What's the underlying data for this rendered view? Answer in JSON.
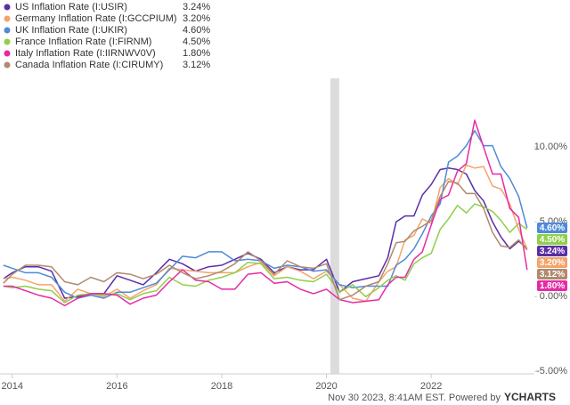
{
  "chart_data": {
    "type": "line",
    "x": [
      2013.83,
      2014.0,
      2014.25,
      2014.5,
      2014.75,
      2015.0,
      2015.25,
      2015.5,
      2015.75,
      2016.0,
      2016.25,
      2016.5,
      2016.75,
      2017.0,
      2017.25,
      2017.5,
      2017.75,
      2018.0,
      2018.25,
      2018.5,
      2018.75,
      2019.0,
      2019.25,
      2019.5,
      2019.75,
      2020.0,
      2020.25,
      2020.5,
      2020.75,
      2021.0,
      2021.17,
      2021.33,
      2021.5,
      2021.67,
      2021.83,
      2022.0,
      2022.17,
      2022.33,
      2022.5,
      2022.67,
      2022.83,
      2023.0,
      2023.17,
      2023.33,
      2023.5,
      2023.67,
      2023.83
    ],
    "series": [
      {
        "name": "US Inflation Rate (I:USIR)",
        "color": "#5b2ea6",
        "last_label": "3.24%",
        "values": [
          1.2,
          1.6,
          2.0,
          2.0,
          1.7,
          -0.1,
          0.0,
          0.2,
          0.2,
          1.4,
          1.1,
          0.8,
          1.6,
          2.5,
          2.2,
          1.7,
          2.0,
          2.1,
          2.5,
          2.9,
          2.5,
          1.6,
          2.0,
          1.8,
          1.8,
          2.5,
          0.3,
          1.0,
          1.2,
          1.4,
          2.6,
          5.0,
          5.4,
          5.4,
          6.8,
          7.5,
          8.5,
          8.6,
          8.5,
          8.2,
          7.1,
          6.4,
          5.0,
          4.0,
          3.2,
          3.7,
          3.24
        ]
      },
      {
        "name": "Germany Inflation Rate (I:GCCPIUM)",
        "color": "#f4a46a",
        "last_label": "3.20%",
        "values": [
          1.2,
          1.3,
          1.1,
          0.8,
          0.8,
          -0.3,
          0.5,
          0.2,
          0.0,
          0.5,
          -0.1,
          0.4,
          0.8,
          1.9,
          1.8,
          1.7,
          1.6,
          1.6,
          1.6,
          2.0,
          2.3,
          1.4,
          2.0,
          1.7,
          1.2,
          1.7,
          0.8,
          -0.1,
          -0.3,
          1.0,
          1.7,
          2.0,
          3.8,
          4.1,
          5.2,
          4.9,
          7.3,
          7.9,
          7.5,
          8.8,
          8.6,
          8.7,
          7.4,
          7.2,
          6.2,
          4.5,
          3.2
        ]
      },
      {
        "name": "UK Inflation Rate (I:UKIR)",
        "color": "#4e8ad8",
        "last_label": "4.60%",
        "values": [
          2.1,
          1.9,
          1.6,
          1.6,
          1.3,
          0.3,
          -0.1,
          0.1,
          -0.1,
          0.3,
          0.3,
          0.6,
          0.9,
          1.8,
          2.7,
          2.6,
          3.0,
          3.0,
          2.4,
          2.5,
          2.4,
          1.9,
          2.1,
          2.0,
          1.7,
          1.8,
          0.8,
          0.6,
          0.7,
          0.7,
          0.7,
          2.1,
          2.5,
          3.2,
          4.2,
          5.4,
          6.2,
          9.0,
          9.4,
          10.1,
          11.1,
          10.1,
          10.1,
          8.7,
          7.9,
          6.7,
          4.6
        ]
      },
      {
        "name": "France Inflation Rate (I:FIRNM)",
        "color": "#8fcf4a",
        "last_label": "4.50%",
        "values": [
          0.7,
          0.6,
          0.7,
          0.5,
          0.4,
          -0.4,
          0.1,
          0.2,
          0.1,
          0.2,
          -0.2,
          0.2,
          0.4,
          1.3,
          0.8,
          0.7,
          1.1,
          1.3,
          1.6,
          2.3,
          2.2,
          1.2,
          1.3,
          1.1,
          1.0,
          1.5,
          0.3,
          0.8,
          0.0,
          0.6,
          1.1,
          1.4,
          1.1,
          2.2,
          2.6,
          2.9,
          4.5,
          5.2,
          6.1,
          5.6,
          6.2,
          6.0,
          5.7,
          5.1,
          4.3,
          4.9,
          4.5
        ]
      },
      {
        "name": "Italy Inflation Rate (I:IIRNWV0V)",
        "color": "#e62aa5",
        "last_label": "1.80%",
        "values": [
          0.7,
          0.7,
          0.4,
          0.1,
          -0.1,
          -0.6,
          -0.1,
          0.2,
          0.2,
          0.1,
          -0.5,
          -0.1,
          0.1,
          1.0,
          1.8,
          1.1,
          1.0,
          0.5,
          0.5,
          1.5,
          1.6,
          0.9,
          1.0,
          0.5,
          0.2,
          0.5,
          -0.2,
          -0.4,
          -0.3,
          -0.2,
          0.8,
          1.3,
          1.3,
          2.5,
          3.0,
          4.8,
          6.5,
          6.8,
          8.4,
          8.9,
          11.8,
          10.0,
          8.2,
          8.2,
          5.9,
          5.3,
          1.8
        ]
      },
      {
        "name": "Canada Inflation Rate (I:CIRUMY)",
        "color": "#b08a6e",
        "last_label": "3.12%",
        "values": [
          0.9,
          1.5,
          2.1,
          2.1,
          2.0,
          1.0,
          0.8,
          1.3,
          1.0,
          1.6,
          1.5,
          1.2,
          1.5,
          2.1,
          1.6,
          1.2,
          1.4,
          1.7,
          2.2,
          3.0,
          2.4,
          1.5,
          2.4,
          2.0,
          1.9,
          2.2,
          -0.2,
          0.1,
          0.7,
          1.0,
          2.2,
          3.6,
          3.7,
          4.4,
          4.7,
          5.1,
          6.7,
          7.7,
          7.6,
          6.9,
          6.9,
          5.9,
          4.3,
          3.4,
          3.3,
          3.8,
          3.12
        ]
      }
    ],
    "xlim": [
      2013.8,
      2023.97
    ],
    "xticks": [
      2014,
      2016,
      2018,
      2020,
      2022
    ],
    "ylim": [
      -5.1,
      14.6
    ],
    "yticks": [
      {
        "value": -5,
        "label": "-5.00%"
      },
      {
        "value": 0,
        "label": "0.00%"
      },
      {
        "value": 5,
        "label": "5.00%"
      },
      {
        "value": 10,
        "label": "10.00%"
      }
    ],
    "grid": false,
    "footer": "Nov 30 2023, 8:41AM EST. Powered by",
    "brand": "YCHARTS"
  }
}
